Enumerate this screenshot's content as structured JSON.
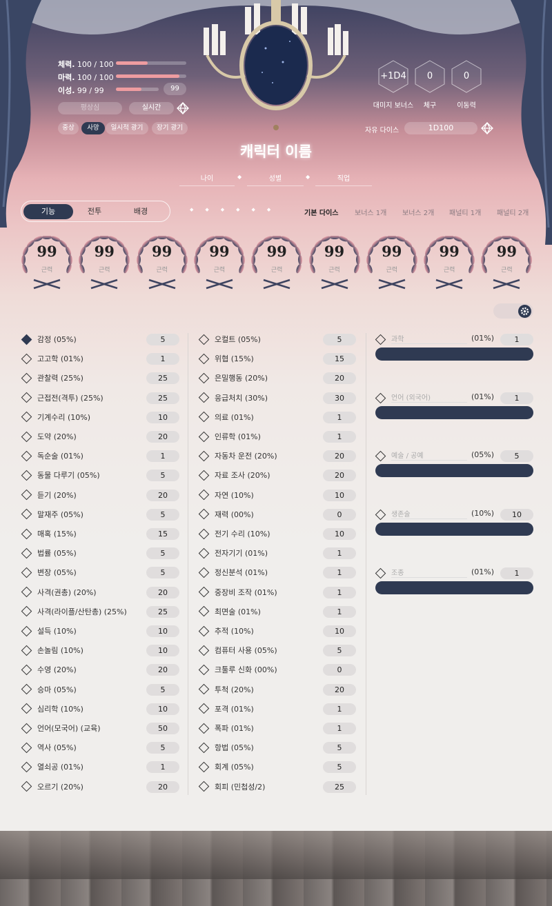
{
  "colors": {
    "accent": "#2f3a52",
    "bar_fill": "#ee9ca0",
    "pink": "#e6b2b6"
  },
  "stats": [
    {
      "label": "체력.",
      "value": "100 / 100",
      "fill": 0.45
    },
    {
      "label": "마력.",
      "value": "100 / 100",
      "fill": 0.9
    },
    {
      "label": "이성.",
      "value": "99  /  99",
      "fill": 0.6,
      "input": "99"
    }
  ],
  "status": {
    "calm": "평상심",
    "realtime": "실시간",
    "dice_icon": "d20-dice-icon"
  },
  "conditions": [
    {
      "label": "중상",
      "active": false
    },
    {
      "label": "사망",
      "active": true
    },
    {
      "label": "일시적 광기",
      "active": false
    },
    {
      "label": "장기 광기",
      "active": false
    }
  ],
  "derived": [
    {
      "value": "+1D4",
      "label": "대미지 보너스"
    },
    {
      "value": "0",
      "label": "체구"
    },
    {
      "value": "0",
      "label": "이동력"
    }
  ],
  "free_dice": {
    "label": "자유 다이스",
    "value": "1D100"
  },
  "character": {
    "name": "캐릭터 이름",
    "age": "나이",
    "gender": "성별",
    "job": "직업"
  },
  "tabs": [
    {
      "label": "기능",
      "active": true
    },
    {
      "label": "전투",
      "active": false
    },
    {
      "label": "배경",
      "active": false
    }
  ],
  "dice_modes": [
    {
      "label": "기본 다이스",
      "active": true
    },
    {
      "label": "보너스 1개"
    },
    {
      "label": "보너스 2개"
    },
    {
      "label": "패널티 1개"
    },
    {
      "label": "패널티 2개"
    }
  ],
  "characteristics": [
    {
      "value": "99",
      "label": "근력"
    },
    {
      "value": "99",
      "label": "근력"
    },
    {
      "value": "99",
      "label": "근력"
    },
    {
      "value": "99",
      "label": "근력"
    },
    {
      "value": "99",
      "label": "근력"
    },
    {
      "value": "99",
      "label": "근력"
    },
    {
      "value": "99",
      "label": "근력"
    },
    {
      "value": "99",
      "label": "근력"
    },
    {
      "value": "99",
      "label": "근력"
    }
  ],
  "skills_col1": [
    {
      "name": "감정 (05%)",
      "value": "5",
      "checked": true
    },
    {
      "name": "고고학 (01%)",
      "value": "1"
    },
    {
      "name": "관찰력 (25%)",
      "value": "25"
    },
    {
      "name": "근접전(격투) (25%)",
      "value": "25"
    },
    {
      "name": "기계수리 (10%)",
      "value": "10"
    },
    {
      "name": "도약 (20%)",
      "value": "20"
    },
    {
      "name": "독순술 (01%)",
      "value": "1"
    },
    {
      "name": "동물 다루기 (05%)",
      "value": "5"
    },
    {
      "name": "듣기 (20%)",
      "value": "20"
    },
    {
      "name": "말재주 (05%)",
      "value": "5"
    },
    {
      "name": "매혹 (15%)",
      "value": "15"
    },
    {
      "name": "법률 (05%)",
      "value": "5"
    },
    {
      "name": "변장 (05%)",
      "value": "5"
    },
    {
      "name": "사격(권총) (20%)",
      "value": "20"
    },
    {
      "name": "사격(라이플/산탄총) (25%)",
      "value": "25"
    },
    {
      "name": "설득 (10%)",
      "value": "10"
    },
    {
      "name": "손놀림 (10%)",
      "value": "10"
    },
    {
      "name": "수영 (20%)",
      "value": "20"
    },
    {
      "name": "승마 (05%)",
      "value": "5"
    },
    {
      "name": "심리학 (10%)",
      "value": "10"
    },
    {
      "name": "언어(모국어) (교육)",
      "value": "50"
    },
    {
      "name": "역사 (05%)",
      "value": "5"
    },
    {
      "name": "열쇠공 (01%)",
      "value": "1"
    },
    {
      "name": "오르기 (20%)",
      "value": "20"
    }
  ],
  "skills_col2": [
    {
      "name": "오컬트 (05%)",
      "value": "5"
    },
    {
      "name": "위협 (15%)",
      "value": "15"
    },
    {
      "name": "은밀행동 (20%)",
      "value": "20"
    },
    {
      "name": "응급처치 (30%)",
      "value": "30"
    },
    {
      "name": "의료 (01%)",
      "value": "1"
    },
    {
      "name": "인류학 (01%)",
      "value": "1"
    },
    {
      "name": "자동차 운전 (20%)",
      "value": "20"
    },
    {
      "name": "자료 조사 (20%)",
      "value": "20"
    },
    {
      "name": "자연 (10%)",
      "value": "10"
    },
    {
      "name": "재력 (00%)",
      "value": "0"
    },
    {
      "name": "전기 수리 (10%)",
      "value": "10"
    },
    {
      "name": "전자기기 (01%)",
      "value": "1"
    },
    {
      "name": "정신분석 (01%)",
      "value": "1"
    },
    {
      "name": "중장비 조작 (01%)",
      "value": "1"
    },
    {
      "name": "최면술 (01%)",
      "value": "1"
    },
    {
      "name": "추적 (10%)",
      "value": "10"
    },
    {
      "name": "컴퓨터 사용 (05%)",
      "value": "5"
    },
    {
      "name": "크툴루 신화 (00%)",
      "value": "0"
    },
    {
      "name": "투척 (20%)",
      "value": "20"
    },
    {
      "name": "포격 (01%)",
      "value": "1"
    },
    {
      "name": "폭파 (01%)",
      "value": "1"
    },
    {
      "name": "항법 (05%)",
      "value": "5"
    },
    {
      "name": "회계 (05%)",
      "value": "5"
    },
    {
      "name": "회피 (민첩성/2)",
      "value": "25"
    }
  ],
  "custom_skills": [
    {
      "placeholder": "과학",
      "pct": "(01%)",
      "value": "1"
    },
    {
      "placeholder": "언어 (외국어)",
      "pct": "(01%)",
      "value": "1"
    },
    {
      "placeholder": "예술 / 공예",
      "pct": "(05%)",
      "value": "5"
    },
    {
      "placeholder": "생존술",
      "pct": "(10%)",
      "value": "10"
    },
    {
      "placeholder": "조종",
      "pct": "(01%)",
      "value": "1"
    }
  ],
  "settings_icon": "gear-icon"
}
